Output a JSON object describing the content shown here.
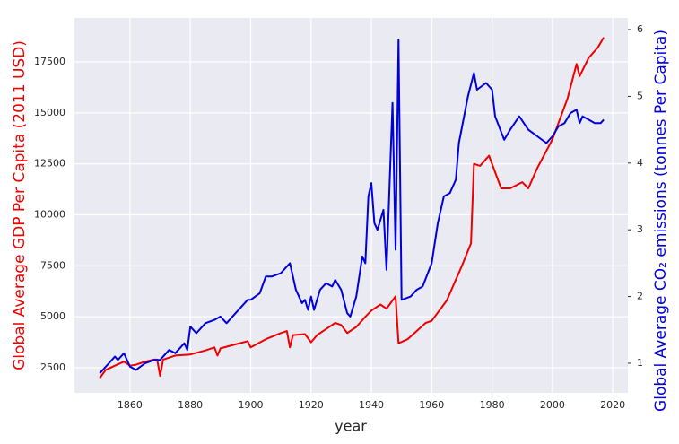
{
  "chart_data": {
    "type": "line",
    "xlabel": "year",
    "ylabel": "Global Average GDP Per Capita (2011 USD)",
    "y2label": "Global Average CO₂ emissions (tonnes Per Capita)",
    "xlim": [
      1841.6,
      2025
    ],
    "xticks": [
      1860,
      1880,
      1900,
      1920,
      1940,
      1960,
      1980,
      2000,
      2020
    ],
    "ylim": [
      1268,
      19656
    ],
    "yticks": [
      2500,
      5000,
      7500,
      10000,
      12500,
      15000,
      17500
    ],
    "y2lim": [
      0.556,
      6.175
    ],
    "y2ticks": [
      1,
      2,
      3,
      4,
      5,
      6
    ],
    "grid": true,
    "series": [
      {
        "name": "GDP",
        "color": "#ee0000",
        "axis": "y",
        "x": [
          1850,
          1852,
          1855,
          1858,
          1860,
          1862,
          1865,
          1868,
          1869,
          1870,
          1871,
          1875,
          1880,
          1885,
          1888,
          1889,
          1890,
          1895,
          1899,
          1900,
          1905,
          1910,
          1912,
          1913,
          1914,
          1918,
          1920,
          1922,
          1925,
          1928,
          1930,
          1932,
          1935,
          1938,
          1940,
          1943,
          1945,
          1948,
          1949,
          1952,
          1955,
          1958,
          1960,
          1965,
          1970,
          1973,
          1974,
          1976,
          1979,
          1983,
          1986,
          1990,
          1992,
          1995,
          2000,
          2005,
          2008,
          2009,
          2012,
          2015,
          2017
        ],
        "values": [
          2000,
          2400,
          2600,
          2800,
          2600,
          2650,
          2800,
          2900,
          2900,
          2100,
          2900,
          3100,
          3150,
          3350,
          3500,
          3100,
          3450,
          3650,
          3800,
          3500,
          3900,
          4200,
          4300,
          3500,
          4100,
          4150,
          3750,
          4100,
          4400,
          4700,
          4600,
          4200,
          4500,
          5000,
          5300,
          5600,
          5400,
          6000,
          3700,
          3900,
          4300,
          4700,
          4800,
          5800,
          7500,
          8600,
          12500,
          12400,
          12900,
          11300,
          11300,
          11600,
          11300,
          12300,
          13700,
          15700,
          17400,
          16800,
          17700,
          18200,
          18700
        ]
      },
      {
        "name": "CO2",
        "color": "#0000dd",
        "axis": "y2",
        "x": [
          1850,
          1853,
          1855,
          1856,
          1858,
          1860,
          1862,
          1865,
          1868,
          1870,
          1873,
          1875,
          1878,
          1879,
          1880,
          1882,
          1885,
          1888,
          1890,
          1892,
          1895,
          1899,
          1900,
          1903,
          1905,
          1907,
          1910,
          1913,
          1915,
          1917,
          1918,
          1919,
          1920,
          1921,
          1923,
          1925,
          1927,
          1928,
          1930,
          1932,
          1933,
          1935,
          1937,
          1938,
          1939,
          1940,
          1941,
          1942,
          1944,
          1945,
          1947,
          1948,
          1949,
          1950,
          1953,
          1955,
          1957,
          1960,
          1962,
          1964,
          1966,
          1968,
          1969,
          1972,
          1974,
          1975,
          1978,
          1980,
          1981,
          1984,
          1986,
          1989,
          1992,
          1995,
          1998,
          2000,
          2002,
          2004,
          2006,
          2008,
          2009,
          2010,
          2012,
          2014,
          2016,
          2017
        ],
        "values": [
          0.85,
          1.0,
          1.1,
          1.05,
          1.15,
          0.95,
          0.9,
          1.0,
          1.05,
          1.05,
          1.2,
          1.15,
          1.3,
          1.2,
          1.55,
          1.45,
          1.6,
          1.65,
          1.7,
          1.6,
          1.75,
          1.95,
          1.95,
          2.05,
          2.3,
          2.3,
          2.35,
          2.5,
          2.1,
          1.9,
          1.95,
          1.8,
          2.0,
          1.8,
          2.1,
          2.2,
          2.15,
          2.25,
          2.1,
          1.75,
          1.7,
          2.0,
          2.6,
          2.5,
          3.5,
          3.7,
          3.1,
          3.0,
          3.3,
          2.4,
          4.9,
          2.7,
          5.85,
          1.95,
          2.0,
          2.1,
          2.15,
          2.5,
          3.1,
          3.5,
          3.55,
          3.75,
          4.3,
          5.0,
          5.35,
          5.1,
          5.2,
          5.1,
          4.7,
          4.35,
          4.5,
          4.7,
          4.5,
          4.4,
          4.3,
          4.4,
          4.55,
          4.6,
          4.75,
          4.8,
          4.6,
          4.7,
          4.65,
          4.6,
          4.6,
          4.65
        ]
      }
    ]
  }
}
